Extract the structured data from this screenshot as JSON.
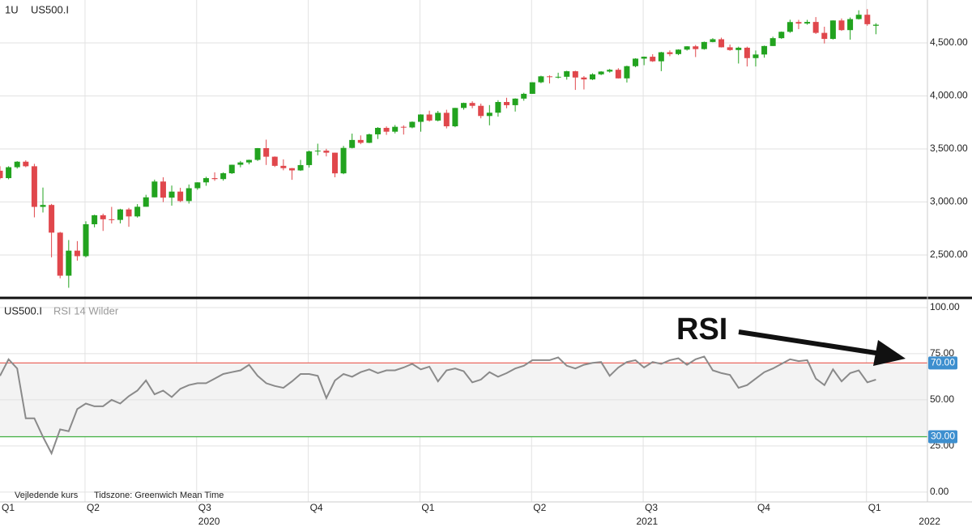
{
  "chart_data": [
    {
      "type": "candlestick",
      "interval": "1U",
      "title": "US500.I",
      "up_color": "#22a31f",
      "down_color": "#e0474c",
      "xlim": [
        0,
        108
      ],
      "ylim": [
        2103,
        4905
      ],
      "yticks": [
        {
          "value": 2500,
          "label": "2,500.00"
        },
        {
          "value": 3000,
          "label": "3,000.00"
        },
        {
          "value": 3500,
          "label": "3,500.00"
        },
        {
          "value": 4000,
          "label": "4,000.00"
        },
        {
          "value": 4500,
          "label": "4,500.00"
        }
      ],
      "grid": true,
      "open": [
        3295,
        3225,
        3328,
        3380,
        3337,
        2954,
        2972,
        2711,
        2305,
        2541,
        2489,
        2790,
        2875,
        2837,
        2831,
        2930,
        2864,
        2955,
        3044,
        3193,
        3041,
        3098,
        3009,
        3130,
        3185,
        3225,
        3216,
        3271,
        3351,
        3373,
        3397,
        3508,
        3427,
        3341,
        3319,
        3298,
        3348,
        3477,
        3484,
        3465,
        3270,
        3510,
        3585,
        3558,
        3638,
        3699,
        3663,
        3709,
        3703,
        3756,
        3825,
        3768,
        3841,
        3714,
        3887,
        3934,
        3907,
        3811,
        3842,
        3943,
        3913,
        3975,
        4020,
        4129,
        4185,
        4180,
        4181,
        4233,
        4174,
        4156,
        4204,
        4230,
        4247,
        4166,
        4281,
        4352,
        4370,
        4327,
        4412,
        4395,
        4437,
        4468,
        4442,
        4509,
        4535,
        4459,
        4433,
        4455,
        4357,
        4391,
        4471,
        4545,
        4605,
        4697,
        4683,
        4698,
        4595,
        4538,
        4712,
        4621,
        4725,
        4766,
        4662
      ],
      "high": [
        3337,
        3337,
        3385,
        3393,
        3360,
        3136,
        2982,
        2718,
        2641,
        2631,
        2818,
        2880,
        2890,
        2954,
        2936,
        2945,
        2980,
        3068,
        3211,
        3233,
        3155,
        3134,
        3165,
        3186,
        3238,
        3280,
        3280,
        3352,
        3387,
        3399,
        3509,
        3588,
        3430,
        3402,
        3321,
        3397,
        3485,
        3550,
        3502,
        3465,
        3529,
        3645,
        3628,
        3645,
        3706,
        3713,
        3726,
        3723,
        3760,
        3827,
        3861,
        3859,
        3870,
        3888,
        3937,
        3950,
        3928,
        3914,
        3960,
        3983,
        3978,
        4030,
        4130,
        4191,
        4194,
        4219,
        4238,
        4238,
        4188,
        4214,
        4234,
        4255,
        4262,
        4286,
        4356,
        4372,
        4394,
        4416,
        4430,
        4440,
        4470,
        4481,
        4513,
        4545,
        4550,
        4485,
        4465,
        4465,
        4429,
        4475,
        4559,
        4608,
        4719,
        4718,
        4718,
        4744,
        4653,
        4713,
        4731,
        4740,
        4808,
        4819,
        4686
      ],
      "low": [
        3214,
        3214,
        3315,
        3328,
        2855,
        2901,
        2478,
        2280,
        2191,
        2447,
        2477,
        2761,
        2727,
        2797,
        2798,
        2766,
        2853,
        2955,
        3044,
        2999,
        2965,
        2999,
        2985,
        3115,
        3153,
        3200,
        3201,
        3264,
        3327,
        3355,
        3387,
        3349,
        3330,
        3299,
        3209,
        3293,
        3325,
        3440,
        3430,
        3233,
        3262,
        3505,
        3545,
        3555,
        3594,
        3633,
        3647,
        3636,
        3695,
        3663,
        3758,
        3760,
        3694,
        3705,
        3870,
        3884,
        3789,
        3723,
        3805,
        3884,
        3853,
        3955,
        4020,
        4120,
        4118,
        4165,
        4154,
        4057,
        4061,
        4150,
        4196,
        4220,
        4164,
        4127,
        4271,
        4290,
        4321,
        4234,
        4375,
        4385,
        4428,
        4367,
        4436,
        4506,
        4457,
        4426,
        4306,
        4278,
        4278,
        4361,
        4471,
        4538,
        4595,
        4630,
        4672,
        4585,
        4495,
        4532,
        4614,
        4531,
        4720,
        4662,
        4582
      ],
      "close": [
        3225,
        3328,
        3380,
        3337,
        2954,
        2972,
        2711,
        2305,
        2541,
        2489,
        2790,
        2875,
        2837,
        2831,
        2930,
        2864,
        2955,
        3044,
        3193,
        3041,
        3098,
        3009,
        3130,
        3185,
        3225,
        3216,
        3271,
        3351,
        3373,
        3397,
        3508,
        3427,
        3341,
        3319,
        3298,
        3348,
        3477,
        3484,
        3465,
        3270,
        3510,
        3585,
        3558,
        3638,
        3699,
        3663,
        3709,
        3703,
        3756,
        3825,
        3768,
        3841,
        3714,
        3887,
        3934,
        3907,
        3811,
        3842,
        3943,
        3913,
        3975,
        4020,
        4129,
        4185,
        4180,
        4181,
        4233,
        4174,
        4156,
        4204,
        4230,
        4247,
        4166,
        4281,
        4352,
        4370,
        4327,
        4412,
        4395,
        4437,
        4468,
        4442,
        4509,
        4535,
        4459,
        4433,
        4455,
        4357,
        4391,
        4471,
        4545,
        4605,
        4697,
        4683,
        4698,
        4595,
        4538,
        4712,
        4621,
        4725,
        4766,
        4677,
        4672
      ]
    },
    {
      "type": "line",
      "title": "US500.I",
      "subtitle": "RSI 14 Wilder",
      "color": "#8a8a8a",
      "xlim": [
        0,
        108
      ],
      "ylim": [
        -5.3,
        104.8
      ],
      "yticks": [
        {
          "value": 0,
          "label": "0.00"
        },
        {
          "value": 25,
          "label": "25.00"
        },
        {
          "value": 50,
          "label": "50.00"
        },
        {
          "value": 75,
          "label": "75.00"
        },
        {
          "value": 100,
          "label": "100.00"
        }
      ],
      "levels": [
        {
          "value": 70,
          "label": "70.00",
          "color": "#e8584f"
        },
        {
          "value": 30,
          "label": "30.00",
          "color": "#3fae3f"
        }
      ],
      "level_label_color": "#3d8fcf",
      "values": [
        63,
        72,
        67,
        40,
        40,
        30,
        21,
        34,
        33,
        45,
        48,
        46.5,
        46.5,
        50,
        48,
        52,
        55,
        60.5,
        53,
        55,
        51.5,
        56,
        58,
        59,
        59,
        61.5,
        64,
        65,
        66,
        69,
        63,
        59,
        57.5,
        56.5,
        60,
        64,
        64,
        63,
        51,
        60.5,
        64,
        62.5,
        65,
        66.5,
        64.5,
        66,
        66,
        67.5,
        69.5,
        66.5,
        68,
        60,
        66,
        67,
        65.5,
        59.5,
        61,
        65,
        62.5,
        64.5,
        67,
        68.5,
        71.5,
        71.5,
        71.5,
        73,
        68.5,
        67,
        69,
        70,
        70.5,
        63,
        67.5,
        70.5,
        71.5,
        67.5,
        70.5,
        69.5,
        71.5,
        72.5,
        69,
        72,
        73.5,
        66,
        64.5,
        63.5,
        56.5,
        58,
        61.5,
        65,
        67,
        69.5,
        72,
        71,
        71.5,
        61.5,
        58,
        66.5,
        60,
        64.5,
        66,
        59.5,
        61
      ],
      "annotation": "RSI",
      "footer": [
        "Vejledende kurs",
        "Tidszone: Greenwich Mean Time"
      ],
      "xticks": [
        {
          "value": 0,
          "label": "Q1"
        },
        {
          "value": 9.9,
          "label": "Q2"
        },
        {
          "value": 22.9,
          "label": "Q3"
        },
        {
          "value": 35.9,
          "label": "Q4"
        },
        {
          "value": 48.9,
          "label": "Q1"
        },
        {
          "value": 61.9,
          "label": "Q2"
        },
        {
          "value": 74.9,
          "label": "Q3"
        },
        {
          "value": 88,
          "label": "Q4"
        },
        {
          "value": 100.9,
          "label": "Q1"
        }
      ],
      "year_ticks": [
        {
          "value": 22.9,
          "label": "2020"
        },
        {
          "value": 73.9,
          "label": "2021"
        },
        {
          "value": 106.8,
          "label": "2022"
        }
      ]
    }
  ]
}
